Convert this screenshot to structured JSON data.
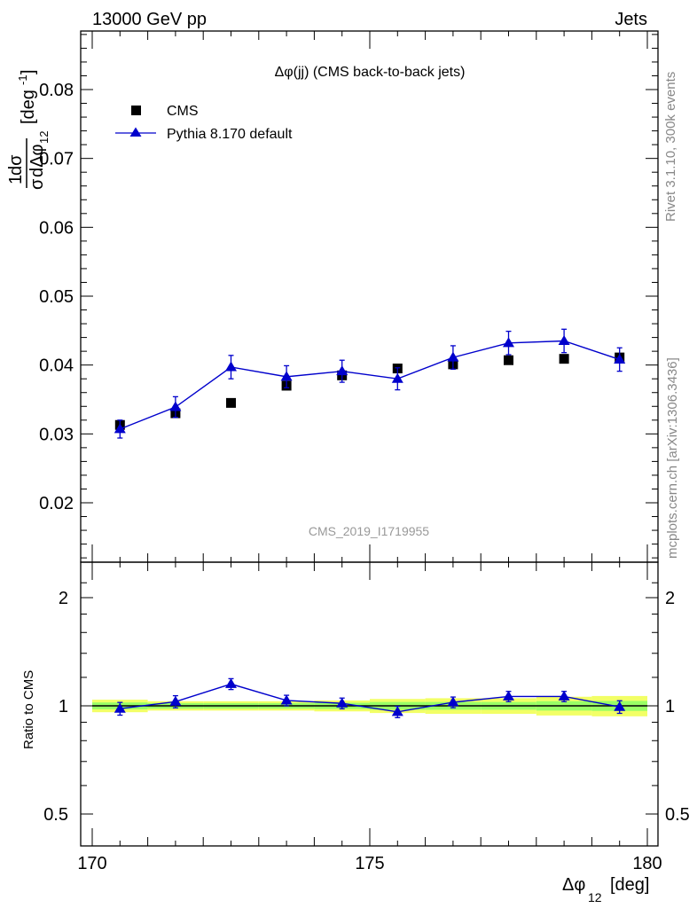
{
  "header": {
    "left": "13000 GeV pp",
    "right": "Jets"
  },
  "side_text": {
    "top": "Rivet 3.1.10,  300k events",
    "bottom": "mcplots.cern.ch [arXiv:1306.3436]"
  },
  "watermark": "CMS_2019_I1719955",
  "colors": {
    "data": "#000000",
    "mc": "#0000cc",
    "band_outer": "#f2ff66",
    "band_inner": "#99ff66"
  },
  "chart_data": [
    {
      "type": "scatter",
      "title": "Δφ(jj) (CMS back-to-back jets)",
      "xlabel": "Δφ12 [deg]",
      "xlabel_main": "Δφ",
      "xlabel_sub": "12",
      "xlabel_unit": "[deg]",
      "ylabel": "1/σ dσ/dΔφ12 [deg⁻¹]",
      "xlim": [
        170,
        180
      ],
      "ylim": [
        0.012,
        0.089
      ],
      "y_ticks": [
        "0.02",
        "0.03",
        "0.04",
        "0.05",
        "0.06",
        "0.07",
        "0.08"
      ],
      "legend_position": "top-left",
      "x": [
        170.5,
        171.5,
        172.5,
        173.5,
        174.5,
        175.5,
        176.5,
        177.5,
        178.5,
        179.5
      ],
      "series": [
        {
          "name": "CMS",
          "marker": "square",
          "values": [
            0.0313,
            0.033,
            0.0345,
            0.037,
            0.0385,
            0.0395,
            0.0401,
            0.0407,
            0.0409,
            0.0411
          ],
          "errors": [
            0.0007,
            0.0005,
            0.0005,
            0.0006,
            0.0006,
            0.0005,
            0.0006,
            0.0005,
            0.0005,
            0.0005
          ]
        },
        {
          "name": "Pythia 8.170 default",
          "marker": "triangle",
          "values": [
            0.0307,
            0.0339,
            0.0397,
            0.0383,
            0.0391,
            0.038,
            0.0411,
            0.0432,
            0.0435,
            0.0408
          ],
          "errors": [
            0.0013,
            0.0015,
            0.0017,
            0.0016,
            0.0016,
            0.0016,
            0.0017,
            0.0017,
            0.0017,
            0.0017
          ]
        }
      ]
    },
    {
      "type": "scatter",
      "ylabel": "Ratio to CMS",
      "xlim": [
        170,
        180
      ],
      "ylim": [
        0.4,
        2.4
      ],
      "y_scale": "log",
      "x_ticks": [
        "170",
        "175",
        "180"
      ],
      "y_ticks": [
        "0.5",
        "1",
        "2"
      ],
      "band_outer": [
        0.04,
        0.03,
        0.03,
        0.03,
        0.035,
        0.045,
        0.05,
        0.05,
        0.06,
        0.065
      ],
      "band_inner": [
        0.022,
        0.018,
        0.018,
        0.018,
        0.02,
        0.025,
        0.025,
        0.025,
        0.03,
        0.032
      ],
      "series": [
        {
          "name": "Pythia 8.170 default",
          "values": [
            0.982,
            1.027,
            1.15,
            1.035,
            1.016,
            0.962,
            1.023,
            1.062,
            1.062,
            0.993
          ],
          "errors": [
            0.04,
            0.04,
            0.04,
            0.035,
            0.035,
            0.035,
            0.035,
            0.035,
            0.035,
            0.04
          ]
        }
      ]
    }
  ]
}
